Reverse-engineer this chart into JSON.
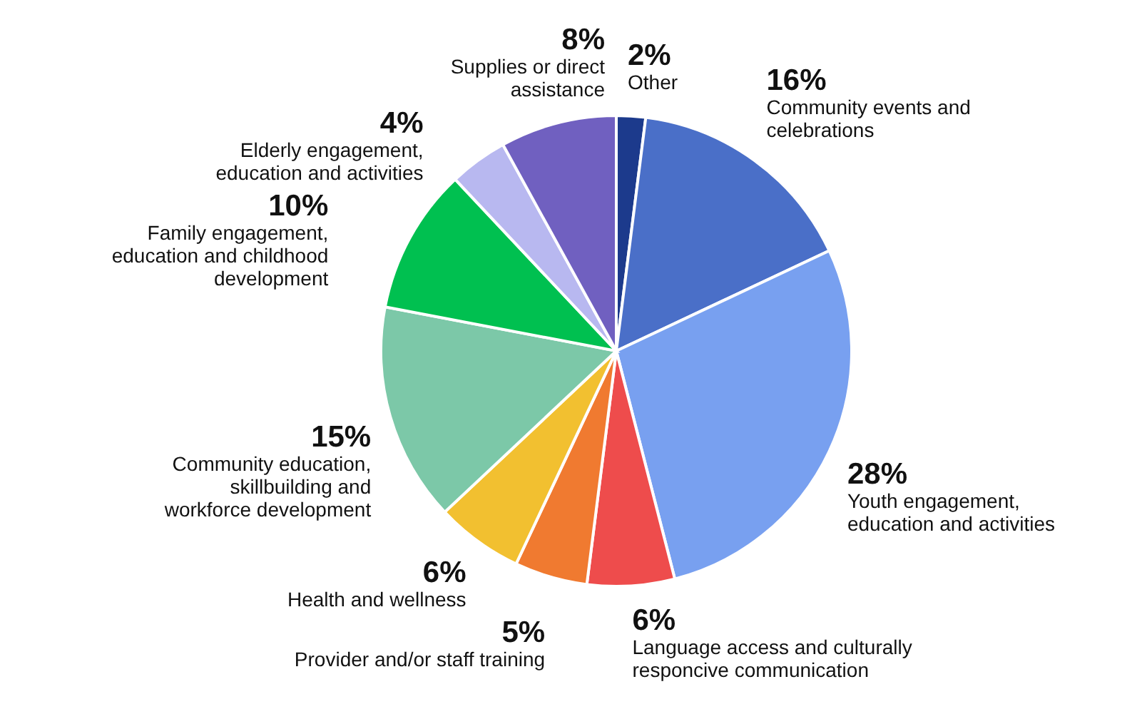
{
  "chart_data": {
    "type": "pie",
    "categories": [
      "Other",
      "Community events and celebrations",
      "Youth engagement, education and activities",
      "Language access and culturally responcive communication",
      "Provider and/or staff training",
      "Health and wellness",
      "Community education, skillbuilding and workforce development",
      "Family engagement, education and childhood development",
      "Elderly engagement, education and activities",
      "Supplies or direct assistance"
    ],
    "values": [
      2,
      16,
      28,
      6,
      5,
      6,
      15,
      10,
      4,
      8
    ],
    "value_labels": [
      "2%",
      "16%",
      "28%",
      "6%",
      "5%",
      "6%",
      "15%",
      "10%",
      "4%",
      "8%"
    ],
    "colors": [
      "#1c3a8c",
      "#4a6fc8",
      "#78a0f0",
      "#ee4c4c",
      "#f07a30",
      "#f2c030",
      "#7cc8a8",
      "#00c050",
      "#b8b8f0",
      "#7060c0"
    ]
  }
}
